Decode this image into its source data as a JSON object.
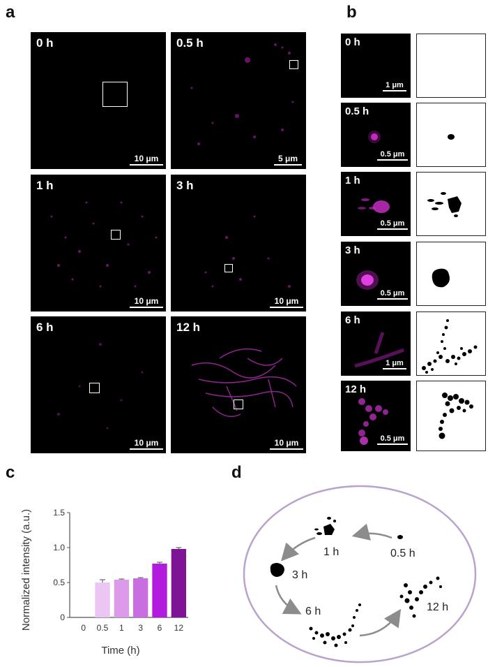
{
  "panels": {
    "a": "a",
    "b": "b",
    "c": "c",
    "d": "d"
  },
  "panel_a": {
    "images": [
      {
        "time": "0 h",
        "scale": "10 μm"
      },
      {
        "time": "0.5 h",
        "scale": "5 μm"
      },
      {
        "time": "1 h",
        "scale": "10 μm"
      },
      {
        "time": "3 h",
        "scale": "10 μm"
      },
      {
        "time": "6 h",
        "scale": "10 μm"
      },
      {
        "time": "12 h",
        "scale": "10 μm"
      }
    ]
  },
  "panel_b": {
    "rows": [
      {
        "time": "0 h",
        "scale": "1 μm"
      },
      {
        "time": "0.5 h",
        "scale": "0.5 μm"
      },
      {
        "time": "1 h",
        "scale": "0.5 μm"
      },
      {
        "time": "3 h",
        "scale": "0.5 μm"
      },
      {
        "time": "6 h",
        "scale": "1 μm"
      },
      {
        "time": "12 h",
        "scale": "0.5 μm"
      }
    ]
  },
  "chart_data": {
    "type": "bar",
    "categories": [
      "0",
      "0.5",
      "1",
      "3",
      "6",
      "12"
    ],
    "values": [
      0,
      0.5,
      0.54,
      0.56,
      0.77,
      0.98
    ],
    "errors": [
      0,
      0.04,
      0.01,
      0.01,
      0.02,
      0.02
    ],
    "colors": [
      "#ffffff",
      "#ecc6f2",
      "#dd99ea",
      "#c96ee0",
      "#b21ddd",
      "#7f1396"
    ],
    "ylabel": "Normalized intensity (a.u.)",
    "xlabel": "Time (h)",
    "ylim": [
      0,
      1.5
    ],
    "yticks": [
      "0",
      "0.5",
      "1.0",
      "1.5"
    ]
  },
  "panel_d": {
    "labels": [
      "0.5 h",
      "1 h",
      "3 h",
      "6 h",
      "12 h"
    ],
    "ellipse_color": "#b9a3cd"
  }
}
